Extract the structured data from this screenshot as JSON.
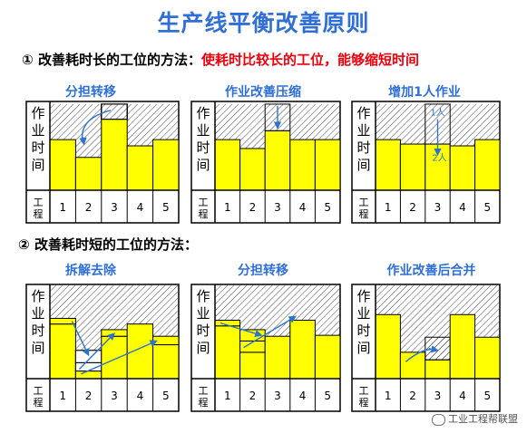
{
  "title": "生产线平衡改善原则",
  "section1": {
    "marker": "①",
    "prefix": "改善耗时长的工位的方法：",
    "highlight": "使耗时比较长的工位，能够缩短时间",
    "panels": [
      {
        "label": "分担转移"
      },
      {
        "label": "作业改善压缩"
      },
      {
        "label": "增加1人作业",
        "annotations": [
          "1人",
          "2人"
        ]
      }
    ]
  },
  "section2": {
    "marker": "②",
    "text": "改善耗时短的工位的方法：",
    "panels": [
      {
        "label": "拆解去除"
      },
      {
        "label": "分担转移"
      },
      {
        "label": "作业改善后合并"
      }
    ]
  },
  "axis": {
    "y_label": "作业时间",
    "x_label": "工程",
    "stations": [
      "1",
      "2",
      "3",
      "4",
      "5"
    ]
  },
  "colors": {
    "bar": "#ffff00",
    "title": "#2f6fd6",
    "highlight": "#e8000d",
    "arrow": "#2e74c9"
  },
  "watermark": "工业工程帮联盟"
}
